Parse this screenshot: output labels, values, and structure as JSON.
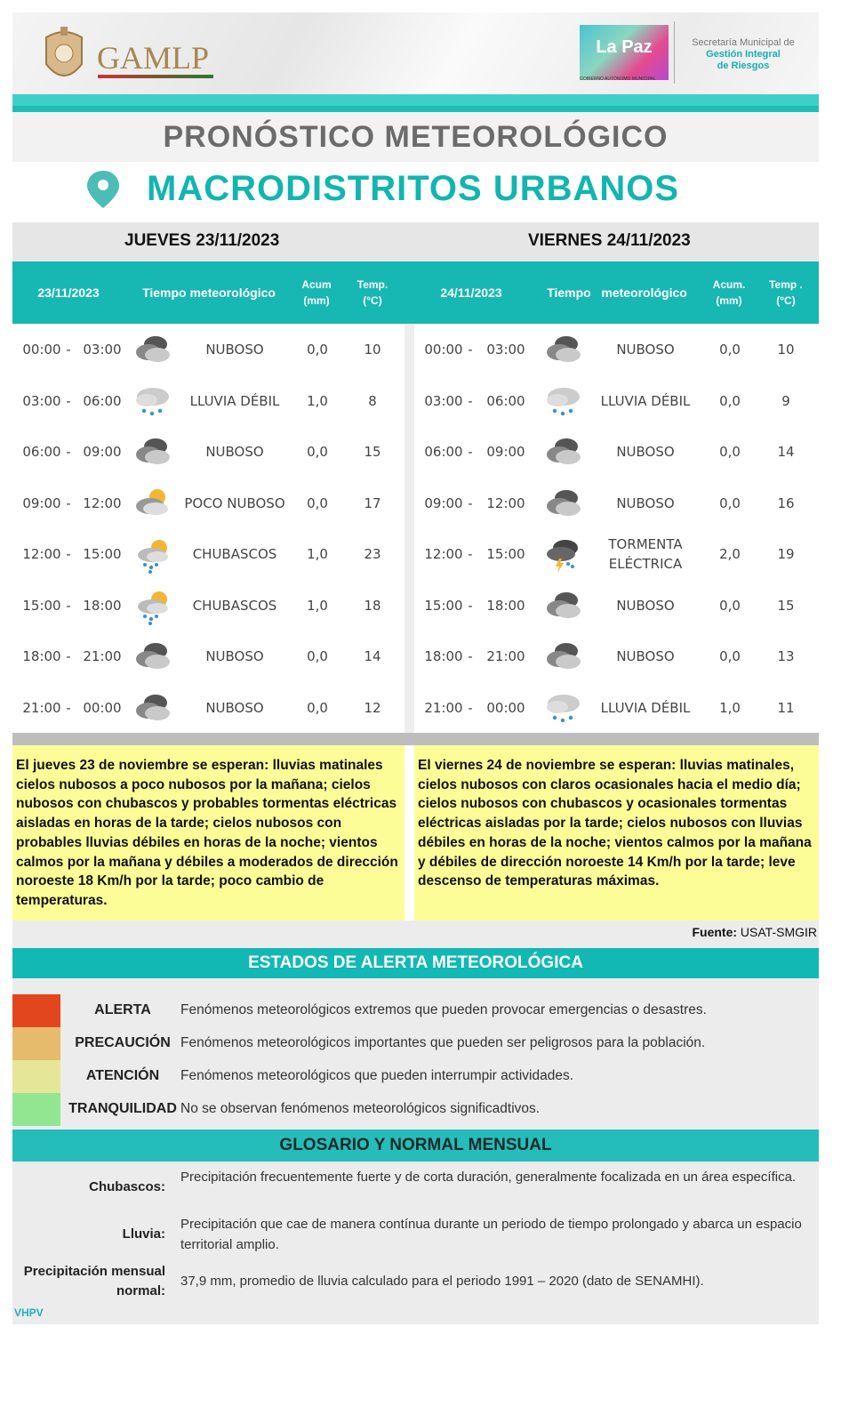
{
  "header": {
    "left_logo": "GAMLP",
    "right_logo": "La Paz",
    "right_logo_sub": "GOBIERNO AUTONOMO MUNICIPAL",
    "secretaria_line1": "Secretaría Municipal de",
    "secretaria_line2": "Gestión Integral",
    "secretaria_line3": "de Riesgos"
  },
  "title": "PRONÓSTICO METEOROLÓGICO",
  "subtitle": "MACRODISTRITOS URBANOS",
  "colors": {
    "teal": "#17b7b3",
    "title_teal": "#12b5b0",
    "yellow": "#fdfd98",
    "alerta": "#e2461e",
    "precaucion": "#e7bb6c",
    "atencion": "#e6e698",
    "tranquilidad": "#92e692"
  },
  "days": [
    {
      "heading": "JUEVES 23/11/2023",
      "col_date": "23/11/2023",
      "col_weather": "Tiempo meteorológico",
      "col_acum": "Acum",
      "col_acum_unit": "(mm)",
      "col_temp": "Temp.",
      "col_temp_unit": "(°C)",
      "rows": [
        {
          "from": "00:00",
          "to": "03:00",
          "icon": "cloudy-icon",
          "cond": "NUBOSO",
          "acum": "0,0",
          "temp": "10"
        },
        {
          "from": "03:00",
          "to": "06:00",
          "icon": "light-rain-icon",
          "cond": "LLUVIA DÉBIL",
          "acum": "1,0",
          "temp": "8"
        },
        {
          "from": "06:00",
          "to": "09:00",
          "icon": "cloudy-icon",
          "cond": "NUBOSO",
          "acum": "0,0",
          "temp": "15"
        },
        {
          "from": "09:00",
          "to": "12:00",
          "icon": "partly-cloudy-icon",
          "cond": "POCO NUBOSO",
          "acum": "0,0",
          "temp": "17"
        },
        {
          "from": "12:00",
          "to": "15:00",
          "icon": "showers-icon",
          "cond": "CHUBASCOS",
          "acum": "1,0",
          "temp": "23"
        },
        {
          "from": "15:00",
          "to": "18:00",
          "icon": "showers-icon",
          "cond": "CHUBASCOS",
          "acum": "1,0",
          "temp": "18"
        },
        {
          "from": "18:00",
          "to": "21:00",
          "icon": "cloudy-icon",
          "cond": "NUBOSO",
          "acum": "0,0",
          "temp": "14"
        },
        {
          "from": "21:00",
          "to": "00:00",
          "icon": "cloudy-icon",
          "cond": "NUBOSO",
          "acum": "0,0",
          "temp": "12"
        }
      ],
      "summary": "El jueves 23 de noviembre se esperan: lluvias matinales cielos nubosos a poco nubosos por la mañana; cielos nubosos con chubascos y probables tormentas eléctricas aisladas en horas de la tarde; cielos nubosos con probables lluvias débiles en horas de la noche; vientos calmos por la mañana y débiles a moderados de dirección noroeste 18 Km/h por la tarde; poco cambio de temperaturas."
    },
    {
      "heading": "VIERNES 24/11/2023",
      "col_date": "24/11/2023",
      "col_weather": "Tiempo   meteorológico",
      "col_acum": "Acum.",
      "col_acum_unit": "(mm)",
      "col_temp": "Temp .",
      "col_temp_unit": "(°C)",
      "rows": [
        {
          "from": "00:00",
          "to": "03:00",
          "icon": "cloudy-icon",
          "cond": "NUBOSO",
          "acum": "0,0",
          "temp": "10"
        },
        {
          "from": "03:00",
          "to": "06:00",
          "icon": "light-rain-icon",
          "cond": "LLUVIA DÉBIL",
          "acum": "0,0",
          "temp": "9"
        },
        {
          "from": "06:00",
          "to": "09:00",
          "icon": "cloudy-icon",
          "cond": "NUBOSO",
          "acum": "0,0",
          "temp": "14"
        },
        {
          "from": "09:00",
          "to": "12:00",
          "icon": "cloudy-icon",
          "cond": "NUBOSO",
          "acum": "0,0",
          "temp": "16"
        },
        {
          "from": "12:00",
          "to": "15:00",
          "icon": "thunderstorm-icon",
          "cond": "TORMENTA ELÉCTRICA",
          "acum": "2,0",
          "temp": "19"
        },
        {
          "from": "15:00",
          "to": "18:00",
          "icon": "cloudy-icon",
          "cond": "NUBOSO",
          "acum": "0,0",
          "temp": "15"
        },
        {
          "from": "18:00",
          "to": "21:00",
          "icon": "cloudy-icon",
          "cond": "NUBOSO",
          "acum": "0,0",
          "temp": "13"
        },
        {
          "from": "21:00",
          "to": "00:00",
          "icon": "light-rain-icon",
          "cond": "LLUVIA DÉBIL",
          "acum": "1,0",
          "temp": "11"
        }
      ],
      "summary": "El viernes 24 de noviembre se esperan:  lluvias matinales, cielos nubosos con claros ocasionales hacia el medio día; cielos nubosos con chubascos y ocasionales tormentas eléctricas aisladas por la tarde; cielos nubosos con lluvias débiles en horas de la noche; vientos calmos por la mañana y débiles de dirección noroeste 14 Km/h por la tarde; leve descenso de temperaturas máximas."
    }
  ],
  "source_label": "Fuente:",
  "source_value": " USAT-SMGIR",
  "alerts": {
    "title": "ESTADOS DE ALERTA METEOROLÓGICA",
    "items": [
      {
        "label": "ALERTA",
        "desc": "Fenómenos meteorológicos extremos que pueden provocar emergencias o desastres.",
        "color": "#e2461e"
      },
      {
        "label": "PRECAUCIÓN",
        "desc": "Fenómenos meteorológicos importantes que pueden ser peligrosos para la población.",
        "color": "#e7bb6c"
      },
      {
        "label": "ATENCIÓN",
        "desc": "Fenómenos meteorológicos que pueden interrumpir actividades.",
        "color": "#e6e698"
      },
      {
        "label": "TRANQUILIDAD",
        "desc": "No se observan fenómenos meteorológicos significadtivos.",
        "color": "#92e692"
      }
    ]
  },
  "glossary": {
    "title": "GLOSARIO Y NORMAL MENSUAL",
    "items": [
      {
        "term": "Chubascos:",
        "def": "Precipitación frecuentemente fuerte y de corta duración, generalmente focalizada en un área específica."
      },
      {
        "term": "Lluvia:",
        "def": "Precipitación que cae de manera contínua durante un periodo de tiempo prolongado y abarca un espacio territorial amplio."
      },
      {
        "term": "Precipitación mensual normal:",
        "def": "37,9 mm, promedio de lluvia calculado para el periodo 1991 – 2020 (dato de SENAMHI)."
      }
    ]
  },
  "footer_initials": "VHPV"
}
